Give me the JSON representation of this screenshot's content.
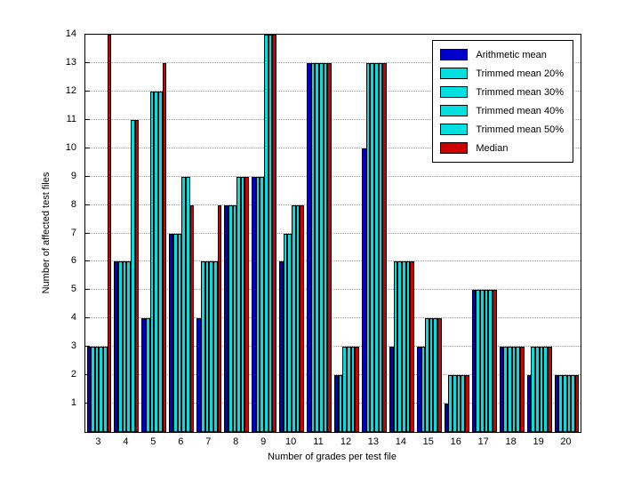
{
  "chart_data": {
    "type": "bar",
    "title": "",
    "xlabel": "Number of grades per test file",
    "ylabel": "Number of affected test files",
    "categories": [
      3,
      4,
      5,
      6,
      7,
      8,
      9,
      10,
      11,
      12,
      13,
      14,
      15,
      16,
      17,
      18,
      19,
      20
    ],
    "series": [
      {
        "name": "Arithmetic mean",
        "color": "#0000CC",
        "values": [
          3,
          6,
          4,
          7,
          4,
          8,
          9,
          6,
          13,
          2,
          10,
          3,
          3,
          1,
          5,
          3,
          2,
          2
        ]
      },
      {
        "name": "Trimmed mean 20%",
        "color": "#00E0E0",
        "values": [
          3,
          6,
          4,
          7,
          6,
          8,
          9,
          7,
          13,
          2,
          13,
          6,
          3,
          2,
          5,
          3,
          3,
          2
        ]
      },
      {
        "name": "Trimmed mean 30%",
        "color": "#00E0E0",
        "values": [
          3,
          6,
          12,
          7,
          6,
          8,
          9,
          7,
          13,
          3,
          13,
          6,
          4,
          2,
          5,
          3,
          3,
          2
        ]
      },
      {
        "name": "Trimmed mean 40%",
        "color": "#00E0E0",
        "values": [
          3,
          6,
          12,
          9,
          6,
          9,
          14,
          8,
          13,
          3,
          13,
          6,
          4,
          2,
          5,
          3,
          3,
          2
        ]
      },
      {
        "name": "Trimmed mean 50%",
        "color": "#00E0E0",
        "values": [
          3,
          11,
          12,
          9,
          6,
          9,
          14,
          8,
          13,
          3,
          13,
          6,
          4,
          2,
          5,
          3,
          3,
          2
        ]
      },
      {
        "name": "Median",
        "color": "#CC0000",
        "values": [
          14,
          11,
          13,
          8,
          8,
          9,
          14,
          8,
          13,
          3,
          13,
          6,
          4,
          2,
          5,
          3,
          3,
          2
        ]
      }
    ],
    "ylim": [
      0,
      14
    ],
    "yticks": [
      1,
      2,
      3,
      4,
      5,
      6,
      7,
      8,
      9,
      10,
      11,
      12,
      13,
      14
    ],
    "grid": "horizontal-dotted",
    "legend_position": "top-right",
    "bar_edge_color": "#000000"
  }
}
